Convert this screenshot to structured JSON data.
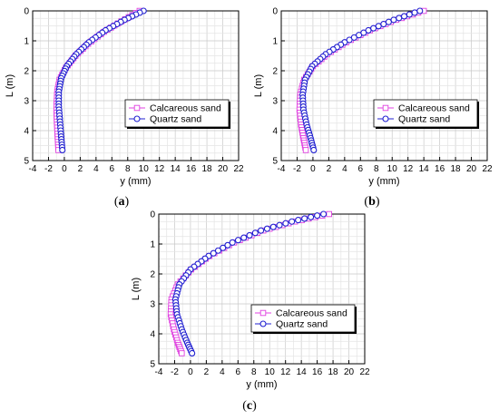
{
  "chart_data": [
    {
      "type": "scatter",
      "caption_letter": "a",
      "xlabel": "y (mm)",
      "ylabel": "L (m)",
      "xlim": [
        -4,
        22
      ],
      "ylim": [
        0,
        5
      ],
      "x_ticks": [
        "-4",
        "-2",
        "0",
        "2",
        "4",
        "6",
        "8",
        "10",
        "12",
        "14",
        "16",
        "18",
        "20",
        "22"
      ],
      "y_ticks": [
        "0",
        "1",
        "2",
        "3",
        "4",
        "5"
      ],
      "y_inverted": true,
      "grid": true,
      "legend_position": "center-right",
      "series": [
        {
          "name": "Calcareous sand",
          "marker": "square",
          "color": "#e040e0",
          "points": [
            [
              9.5,
              0
            ],
            [
              7.2,
              0.35
            ],
            [
              5.0,
              0.7
            ],
            [
              3.0,
              1.1
            ],
            [
              1.4,
              1.5
            ],
            [
              0.2,
              1.9
            ],
            [
              -0.6,
              2.3
            ],
            [
              -0.9,
              2.7
            ],
            [
              -1.0,
              3.2
            ],
            [
              -0.95,
              3.7
            ],
            [
              -0.85,
              4.2
            ],
            [
              -0.75,
              4.65
            ]
          ]
        },
        {
          "name": "Quartz sand",
          "marker": "circle",
          "color": "#2020d0",
          "points": [
            [
              10.0,
              0
            ],
            [
              7.6,
              0.3
            ],
            [
              5.2,
              0.65
            ],
            [
              3.1,
              1.05
            ],
            [
              1.5,
              1.45
            ],
            [
              0.3,
              1.85
            ],
            [
              -0.4,
              2.25
            ],
            [
              -0.7,
              2.7
            ],
            [
              -0.7,
              3.2
            ],
            [
              -0.55,
              3.7
            ],
            [
              -0.4,
              4.2
            ],
            [
              -0.25,
              4.65
            ]
          ]
        }
      ]
    },
    {
      "type": "scatter",
      "caption_letter": "b",
      "xlabel": "y (mm)",
      "ylabel": "L (m)",
      "xlim": [
        -4,
        22
      ],
      "ylim": [
        0,
        5
      ],
      "x_ticks": [
        "-4",
        "-2",
        "0",
        "2",
        "4",
        "6",
        "8",
        "10",
        "12",
        "14",
        "16",
        "18",
        "20",
        "22"
      ],
      "y_ticks": [
        "0",
        "1",
        "2",
        "3",
        "4",
        "5"
      ],
      "y_inverted": true,
      "grid": true,
      "legend_position": "center-right",
      "series": [
        {
          "name": "Calcareous sand",
          "marker": "square",
          "color": "#e040e0",
          "points": [
            [
              14.0,
              0
            ],
            [
              10.5,
              0.3
            ],
            [
              7.2,
              0.65
            ],
            [
              4.2,
              1.05
            ],
            [
              1.8,
              1.45
            ],
            [
              0.0,
              1.85
            ],
            [
              -1.1,
              2.3
            ],
            [
              -1.6,
              2.8
            ],
            [
              -1.7,
              3.3
            ],
            [
              -1.5,
              3.8
            ],
            [
              -1.2,
              4.25
            ],
            [
              -0.9,
              4.65
            ]
          ]
        },
        {
          "name": "Quartz sand",
          "marker": "circle",
          "color": "#2020d0",
          "points": [
            [
              13.5,
              0
            ],
            [
              10.2,
              0.3
            ],
            [
              7.0,
              0.65
            ],
            [
              4.0,
              1.05
            ],
            [
              1.6,
              1.45
            ],
            [
              -0.1,
              1.85
            ],
            [
              -1.0,
              2.3
            ],
            [
              -1.3,
              2.8
            ],
            [
              -1.2,
              3.3
            ],
            [
              -0.8,
              3.8
            ],
            [
              -0.3,
              4.25
            ],
            [
              0.1,
              4.65
            ]
          ]
        }
      ]
    },
    {
      "type": "scatter",
      "caption_letter": "c",
      "xlabel": "y (mm)",
      "ylabel": "L (m)",
      "xlim": [
        -4,
        22
      ],
      "ylim": [
        0,
        5
      ],
      "x_ticks": [
        "-4",
        "-2",
        "0",
        "2",
        "4",
        "6",
        "8",
        "10",
        "12",
        "14",
        "16",
        "18",
        "20",
        "22"
      ],
      "y_ticks": [
        "0",
        "1",
        "2",
        "3",
        "4",
        "5"
      ],
      "y_inverted": true,
      "grid": true,
      "legend_position": "bottom-right",
      "series": [
        {
          "name": "Calcareous sand",
          "marker": "square",
          "color": "#e040e0",
          "points": [
            [
              17.5,
              0
            ],
            [
              13.2,
              0.25
            ],
            [
              9.2,
              0.55
            ],
            [
              5.5,
              0.95
            ],
            [
              2.4,
              1.4
            ],
            [
              0.1,
              1.85
            ],
            [
              -1.6,
              2.35
            ],
            [
              -2.4,
              2.85
            ],
            [
              -2.5,
              3.35
            ],
            [
              -2.1,
              3.85
            ],
            [
              -1.6,
              4.3
            ],
            [
              -1.1,
              4.65
            ]
          ]
        },
        {
          "name": "Quartz sand",
          "marker": "circle",
          "color": "#2020d0",
          "points": [
            [
              16.8,
              0
            ],
            [
              12.8,
              0.25
            ],
            [
              8.9,
              0.55
            ],
            [
              5.3,
              0.95
            ],
            [
              2.3,
              1.4
            ],
            [
              0.0,
              1.85
            ],
            [
              -1.4,
              2.35
            ],
            [
              -1.9,
              2.85
            ],
            [
              -1.7,
              3.35
            ],
            [
              -1.1,
              3.85
            ],
            [
              -0.4,
              4.3
            ],
            [
              0.2,
              4.65
            ]
          ]
        }
      ]
    }
  ]
}
